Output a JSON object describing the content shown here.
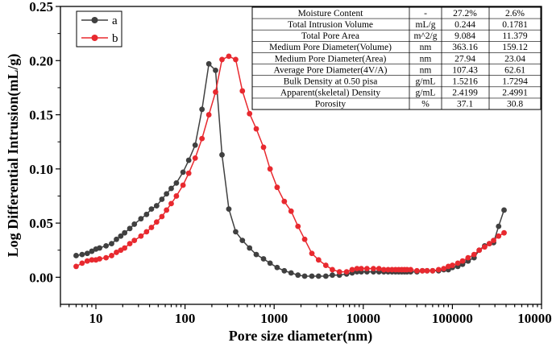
{
  "chart_data": {
    "type": "line",
    "xlabel": "Pore size diameter(nm)",
    "ylabel": "Log Differential Intrusion(mL/g)",
    "xscale": "log",
    "xlim": [
      4,
      1000000
    ],
    "ylim": [
      -0.025,
      0.25
    ],
    "x_tick_labels": [
      "10",
      "100",
      "1000",
      "10000",
      "100000",
      "1000000"
    ],
    "y_tick_labels": [
      "0.00",
      "0.05",
      "0.10",
      "0.15",
      "0.20",
      "0.25"
    ],
    "legend_position": "top-left",
    "series": [
      {
        "name": "a",
        "color": "#404040",
        "x": [
          6,
          7,
          8,
          9,
          10,
          11,
          13,
          15,
          17,
          19,
          21,
          24,
          27,
          32,
          37,
          42,
          48,
          55,
          62,
          70,
          80,
          95,
          110,
          130,
          155,
          185,
          220,
          260,
          310,
          370,
          440,
          530,
          630,
          760,
          900,
          1080,
          1300,
          1550,
          1850,
          2200,
          2650,
          3150,
          3800,
          4500,
          5400,
          6500,
          7500,
          8500,
          9500,
          11000,
          13000,
          15000,
          17000,
          19000,
          21000,
          23000,
          25000,
          27000,
          29000,
          31000,
          34000,
          40000,
          46000,
          52000,
          60000,
          70000,
          80000,
          90000,
          100000,
          115000,
          130000,
          150000,
          175000,
          200000,
          230000,
          260000,
          290000,
          330000,
          380000
        ],
        "y": [
          0.02,
          0.021,
          0.022,
          0.024,
          0.026,
          0.027,
          0.029,
          0.031,
          0.035,
          0.038,
          0.041,
          0.045,
          0.049,
          0.054,
          0.058,
          0.063,
          0.066,
          0.072,
          0.077,
          0.082,
          0.087,
          0.097,
          0.108,
          0.122,
          0.155,
          0.197,
          0.191,
          0.113,
          0.063,
          0.042,
          0.034,
          0.027,
          0.021,
          0.017,
          0.013,
          0.009,
          0.006,
          0.004,
          0.002,
          0.001,
          0.001,
          0.001,
          0.001,
          0.002,
          0.002,
          0.003,
          0.004,
          0.005,
          0.005,
          0.005,
          0.005,
          0.005,
          0.005,
          0.005,
          0.005,
          0.005,
          0.005,
          0.005,
          0.005,
          0.005,
          0.005,
          0.005,
          0.006,
          0.006,
          0.006,
          0.006,
          0.007,
          0.007,
          0.009,
          0.01,
          0.012,
          0.015,
          0.018,
          0.025,
          0.029,
          0.031,
          0.032,
          0.047,
          0.062
        ]
      },
      {
        "name": "b",
        "color": "#e8292f",
        "x": [
          6,
          7,
          8,
          9,
          10,
          11,
          13,
          15,
          17,
          19,
          21,
          24,
          27,
          32,
          37,
          42,
          48,
          55,
          62,
          70,
          80,
          95,
          110,
          130,
          155,
          185,
          220,
          260,
          310,
          370,
          440,
          530,
          630,
          760,
          900,
          1080,
          1300,
          1550,
          1850,
          2200,
          2650,
          3150,
          3800,
          4500,
          5400,
          6500,
          7500,
          8500,
          9500,
          11000,
          13000,
          15000,
          17000,
          19000,
          21000,
          23000,
          25000,
          27000,
          29000,
          31000,
          34000,
          40000,
          46000,
          52000,
          60000,
          70000,
          80000,
          90000,
          100000,
          115000,
          130000,
          150000,
          175000,
          200000,
          230000,
          260000,
          290000,
          330000,
          380000
        ],
        "y": [
          0.01,
          0.013,
          0.015,
          0.016,
          0.016,
          0.017,
          0.018,
          0.02,
          0.023,
          0.025,
          0.027,
          0.031,
          0.034,
          0.038,
          0.042,
          0.046,
          0.051,
          0.056,
          0.062,
          0.068,
          0.075,
          0.085,
          0.096,
          0.11,
          0.128,
          0.15,
          0.171,
          0.201,
          0.204,
          0.201,
          0.172,
          0.151,
          0.137,
          0.12,
          0.1,
          0.083,
          0.07,
          0.061,
          0.047,
          0.035,
          0.022,
          0.016,
          0.011,
          0.007,
          0.005,
          0.005,
          0.007,
          0.008,
          0.008,
          0.008,
          0.008,
          0.008,
          0.007,
          0.007,
          0.007,
          0.007,
          0.007,
          0.007,
          0.007,
          0.007,
          0.007,
          0.006,
          0.006,
          0.006,
          0.006,
          0.007,
          0.008,
          0.01,
          0.011,
          0.013,
          0.015,
          0.018,
          0.021,
          0.025,
          0.028,
          0.031,
          0.034,
          0.038,
          0.041
        ]
      }
    ],
    "table": {
      "header": [
        "Moisture Content",
        "-",
        "27.2%",
        "2.6%"
      ],
      "rows": [
        [
          "Total Intrusion Volume",
          "mL/g",
          "0.244",
          "0.1781"
        ],
        [
          "Total Pore Area",
          "m^2/g",
          "9.084",
          "11.379"
        ],
        [
          "Medium Pore Diameter(Volume)",
          "nm",
          "363.16",
          "159.12"
        ],
        [
          "Medium Pore Diameter(Area)",
          "nm",
          "27.94",
          "23.04"
        ],
        [
          "Average Pore Diameter(4V/A)",
          "nm",
          "107.43",
          "62.61"
        ],
        [
          "Bulk Density at 0.50 pisa",
          "g/mL",
          "1.5216",
          "1.7294"
        ],
        [
          "Apparent(skeletal) Density",
          "g/mL",
          "2.4199",
          "2.4991"
        ],
        [
          "Porosity",
          "%",
          "37.1",
          "30.8"
        ]
      ]
    }
  }
}
